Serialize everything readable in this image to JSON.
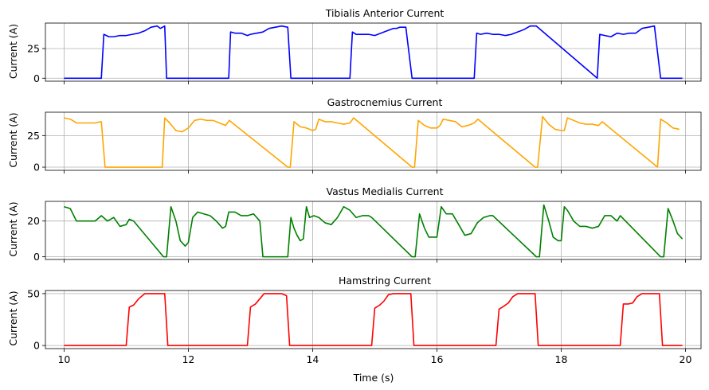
{
  "chart_data": [
    {
      "type": "line",
      "title": "Tibialis Anterior Current",
      "xlabel": "",
      "ylabel": "Current (A)",
      "xlim": [
        9.7,
        20.25
      ],
      "ylim": [
        -2.5,
        46.5
      ],
      "yticks": [
        0,
        25
      ],
      "xticks": [
        10,
        12,
        14,
        16,
        18,
        20
      ],
      "xtick_labels_visible": false,
      "grid": true,
      "series": [
        {
          "color": "#0000ff",
          "x": [
            10.0,
            10.6,
            10.64,
            10.72,
            10.8,
            10.9,
            11.0,
            11.1,
            11.2,
            11.3,
            11.4,
            11.5,
            11.55,
            11.62,
            11.65,
            12.65,
            12.68,
            12.75,
            12.85,
            12.95,
            13.0,
            13.1,
            13.2,
            13.3,
            13.4,
            13.5,
            13.6,
            13.65,
            14.6,
            14.64,
            14.7,
            14.8,
            14.9,
            15.0,
            15.1,
            15.2,
            15.3,
            15.35,
            15.4,
            15.5,
            15.6,
            16.6,
            16.64,
            16.7,
            16.8,
            16.9,
            17.0,
            17.1,
            17.2,
            17.3,
            17.4,
            17.5,
            17.6,
            18.58,
            18.62,
            18.7,
            18.8,
            18.9,
            19.0,
            19.1,
            19.2,
            19.3,
            19.4,
            19.5,
            19.6,
            19.95
          ],
          "y": [
            0,
            0,
            37,
            35,
            35,
            36,
            36,
            37,
            38,
            40,
            43,
            44,
            42,
            44,
            0,
            0,
            39,
            38,
            38,
            36,
            37,
            38,
            39,
            42,
            43,
            44,
            43,
            0,
            0,
            39,
            37,
            37,
            37,
            36,
            38,
            40,
            42,
            42,
            43,
            43,
            0,
            0,
            38,
            37,
            38,
            37,
            37,
            36,
            37,
            39,
            41,
            44,
            44,
            0,
            37,
            36,
            35,
            38,
            37,
            38,
            38,
            42,
            43,
            44,
            0,
            0
          ]
        }
      ]
    },
    {
      "type": "line",
      "title": "Gastrocnemius Current",
      "xlabel": "",
      "ylabel": "Current (A)",
      "xlim": [
        9.7,
        20.25
      ],
      "ylim": [
        -2.5,
        43.5
      ],
      "yticks": [
        0,
        25
      ],
      "xticks": [
        10,
        12,
        14,
        16,
        18,
        20
      ],
      "xtick_labels_visible": false,
      "grid": true,
      "series": [
        {
          "color": "#ffa500",
          "x": [
            10.0,
            10.1,
            10.2,
            10.3,
            10.4,
            10.5,
            10.6,
            10.66,
            11.58,
            11.62,
            11.7,
            11.8,
            11.9,
            12.0,
            12.1,
            12.2,
            12.3,
            12.4,
            12.5,
            12.6,
            12.66,
            13.6,
            13.64,
            13.7,
            13.8,
            13.9,
            14.0,
            14.05,
            14.1,
            14.2,
            14.3,
            14.4,
            14.5,
            14.6,
            14.66,
            15.6,
            15.64,
            15.7,
            15.8,
            15.9,
            16.0,
            16.05,
            16.1,
            16.2,
            16.3,
            16.4,
            16.5,
            16.6,
            16.66,
            17.58,
            17.62,
            17.7,
            17.8,
            17.9,
            18.0,
            18.05,
            18.1,
            18.2,
            18.3,
            18.4,
            18.5,
            18.6,
            18.66,
            19.55,
            19.6,
            19.7,
            19.8,
            19.9
          ],
          "y": [
            39,
            38,
            35,
            35,
            35,
            35,
            36,
            0,
            0,
            39,
            35,
            29,
            28,
            31,
            37,
            38,
            37,
            37,
            35,
            33,
            37,
            0,
            0,
            36,
            32,
            31,
            29,
            30,
            38,
            36,
            36,
            35,
            34,
            35,
            39,
            0,
            0,
            37,
            33,
            31,
            31,
            33,
            38,
            37,
            36,
            32,
            33,
            35,
            38,
            0,
            0,
            40,
            34,
            30,
            29,
            29,
            39,
            37,
            35,
            34,
            34,
            33,
            36,
            0,
            38,
            35,
            31,
            30
          ]
        }
      ]
    },
    {
      "type": "line",
      "title": "Vastus Medialis Current",
      "xlabel": "",
      "ylabel": "Current (A)",
      "xlim": [
        9.7,
        20.25
      ],
      "ylim": [
        -1.5,
        31
      ],
      "yticks": [
        0,
        20
      ],
      "xticks": [
        10,
        12,
        14,
        16,
        18,
        20
      ],
      "xtick_labels_visible": false,
      "grid": true,
      "series": [
        {
          "color": "#008000",
          "x": [
            10.0,
            10.1,
            10.2,
            10.3,
            10.4,
            10.5,
            10.6,
            10.7,
            10.8,
            10.9,
            11.0,
            11.05,
            11.12,
            11.6,
            11.65,
            11.72,
            11.8,
            11.87,
            11.95,
            12.0,
            12.07,
            12.15,
            12.25,
            12.35,
            12.45,
            12.55,
            12.6,
            12.65,
            12.75,
            12.85,
            12.95,
            13.05,
            13.15,
            13.2,
            13.6,
            13.65,
            13.7,
            13.75,
            13.8,
            13.85,
            13.9,
            13.95,
            14.02,
            14.1,
            14.2,
            14.3,
            14.4,
            14.5,
            14.6,
            14.7,
            14.8,
            14.9,
            14.95,
            15.6,
            15.65,
            15.72,
            15.8,
            15.87,
            15.95,
            16.0,
            16.07,
            16.15,
            16.25,
            16.35,
            16.45,
            16.55,
            16.65,
            16.75,
            16.85,
            16.9,
            17.6,
            17.65,
            17.72,
            17.8,
            17.87,
            17.95,
            18.0,
            18.05,
            18.1,
            18.2,
            18.3,
            18.4,
            18.5,
            18.6,
            18.7,
            18.8,
            18.9,
            18.95,
            19.6,
            19.65,
            19.72,
            19.8,
            19.87,
            19.95
          ],
          "y": [
            28,
            27,
            20,
            20,
            20,
            20,
            23,
            20,
            22,
            17,
            18,
            21,
            20,
            0,
            0,
            28,
            20,
            9,
            6,
            8,
            22,
            25,
            24,
            23,
            20,
            16,
            17,
            25,
            25,
            23,
            23,
            24,
            20,
            0,
            0,
            22,
            16,
            12,
            9,
            10,
            28,
            22,
            23,
            22,
            19,
            18,
            22,
            28,
            26,
            22,
            23,
            23,
            22,
            0,
            0,
            24,
            16,
            11,
            11,
            11,
            28,
            24,
            24,
            18,
            12,
            13,
            19,
            22,
            23,
            23,
            0,
            0,
            29,
            20,
            11,
            9,
            9,
            28,
            26,
            20,
            17,
            17,
            16,
            17,
            23,
            23,
            20,
            23,
            0,
            0,
            27,
            20,
            13,
            10
          ],
          "_": ""
        }
      ]
    },
    {
      "type": "line",
      "title": "Hamstring Current",
      "xlabel": "Time (s)",
      "ylabel": "Current (A)",
      "xlim": [
        9.7,
        20.25
      ],
      "ylim": [
        -3,
        53
      ],
      "yticks": [
        0,
        50
      ],
      "xticks": [
        10,
        12,
        14,
        16,
        18,
        20
      ],
      "xtick_labels": [
        "10",
        "12",
        "14",
        "16",
        "18",
        "20"
      ],
      "xtick_labels_visible": true,
      "grid": true,
      "series": [
        {
          "color": "#ff0000",
          "x": [
            10.0,
            11.0,
            11.05,
            11.12,
            11.2,
            11.3,
            11.4,
            11.5,
            11.55,
            11.62,
            11.67,
            12.95,
            13.0,
            13.08,
            13.15,
            13.22,
            13.3,
            13.4,
            13.5,
            13.58,
            13.63,
            14.95,
            15.0,
            15.08,
            15.15,
            15.22,
            15.3,
            15.4,
            15.5,
            15.58,
            15.63,
            16.95,
            17.0,
            17.08,
            17.15,
            17.22,
            17.3,
            17.4,
            17.5,
            17.58,
            17.63,
            18.95,
            19.0,
            19.08,
            19.15,
            19.22,
            19.3,
            19.4,
            19.5,
            19.58,
            19.63,
            19.95
          ],
          "y": [
            0,
            0,
            37,
            39,
            45,
            50,
            50,
            50,
            50,
            50,
            0,
            0,
            37,
            40,
            45,
            50,
            50,
            50,
            50,
            48,
            0,
            0,
            36,
            39,
            43,
            49,
            50,
            50,
            50,
            50,
            0,
            0,
            35,
            38,
            41,
            47,
            50,
            50,
            50,
            50,
            0,
            0,
            40,
            40,
            41,
            47,
            50,
            50,
            50,
            50,
            0,
            0
          ]
        }
      ]
    }
  ]
}
